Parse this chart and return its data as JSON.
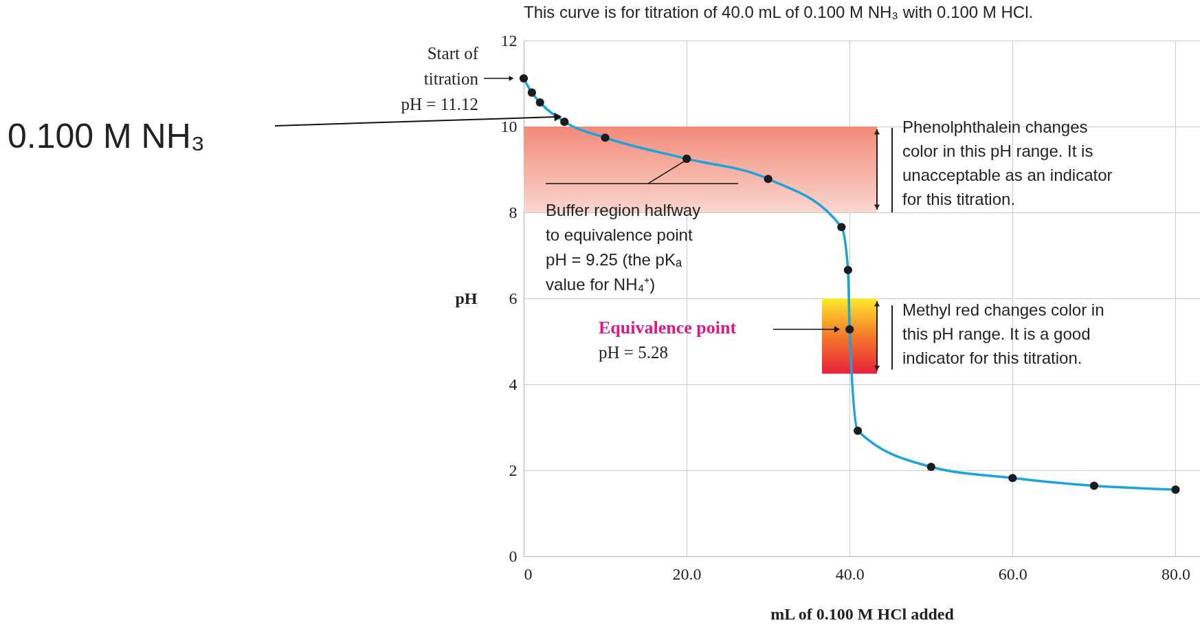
{
  "chart_data": {
    "type": "line",
    "title": "This curve is for titration of 40.0 mL of 0.100 M NH₃ with 0.100 M HCl.",
    "xlabel": "mL of 0.100 M HCl added",
    "ylabel": "pH",
    "x": [
      0,
      1,
      2,
      5,
      10,
      20,
      30,
      39,
      39.8,
      40,
      41,
      50,
      60,
      70,
      80
    ],
    "series": [
      {
        "color": "#1aa3dd",
        "marker": "none",
        "values": [
          11.12,
          10.79,
          10.56,
          10.11,
          9.74,
          9.25,
          8.78,
          7.66,
          6.66,
          5.28,
          2.92,
          2.08,
          1.82,
          1.64,
          1.55
        ]
      },
      {
        "type": "scatter",
        "color": "#1c1c1c",
        "marker": "circle",
        "values": [
          11.12,
          10.79,
          10.56,
          10.11,
          9.74,
          9.25,
          8.78,
          7.66,
          6.66,
          5.28,
          2.92,
          2.08,
          1.82,
          1.64,
          1.55
        ]
      }
    ],
    "xlim": [
      0,
      83
    ],
    "ylim": [
      0,
      12
    ],
    "xticks": [
      0,
      {
        "value": 20,
        "label": "20.0"
      },
      {
        "value": 40,
        "label": "40.0"
      },
      {
        "value": 60,
        "label": "60.0"
      },
      {
        "value": 80,
        "label": "80.0"
      }
    ],
    "yticks": [
      0,
      2,
      4,
      6,
      8,
      10,
      12
    ],
    "grid": true,
    "bands": [
      {
        "axis": "y",
        "from": 8,
        "to": 10,
        "color": "#f28a78",
        "label": "Phenolphthalein changes\ncolor in this pH range. It is\nunacceptable as an indicator\nfor this titration."
      },
      {
        "axis": "y",
        "from": 4.25,
        "to": 6,
        "color": "#f47a2a",
        "label": "Methyl red changes color in\nthis pH range. It is a good\nindicator for this titration."
      }
    ],
    "annotations": [
      {
        "text": "Start of\ntitration\npH = 11.12",
        "x": 0,
        "y": 11.12
      },
      "0.100 M NH₃",
      {
        "text": "Buffer region halfway\nto equivalence point\npH = 9.25 (the pKₐ\nvalue for NH₄⁺)",
        "x": 20,
        "y": 9.25
      },
      "Equivalence point",
      "pH = 5.28"
    ]
  }
}
